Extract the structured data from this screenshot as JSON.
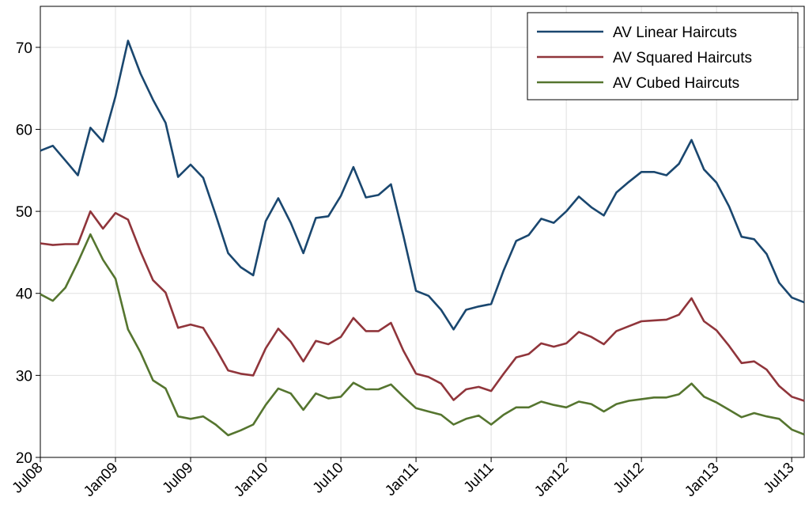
{
  "chart_data": {
    "type": "line",
    "categories": [
      "Jul08",
      null,
      null,
      null,
      null,
      null,
      "Jan09",
      null,
      null,
      null,
      null,
      null,
      "Jul09",
      null,
      null,
      null,
      null,
      null,
      "Jan10",
      null,
      null,
      null,
      null,
      null,
      "Jul10",
      null,
      null,
      null,
      null,
      null,
      "Jan11",
      null,
      null,
      null,
      null,
      null,
      "Jul11",
      null,
      null,
      null,
      null,
      null,
      "Jan12",
      null,
      null,
      null,
      null,
      null,
      "Jul12",
      null,
      null,
      null,
      null,
      null,
      "Jan13",
      null,
      null,
      null,
      null,
      null,
      "Jul13",
      null
    ],
    "series": [
      {
        "name": "AV Linear Haircuts",
        "color": "#1a476f",
        "values": [
          57.4,
          58.0,
          56.2,
          54.4,
          60.2,
          58.5,
          64.0,
          70.8,
          66.8,
          63.6,
          60.8,
          54.2,
          55.7,
          54.1,
          49.6,
          44.9,
          43.2,
          42.2,
          48.8,
          51.6,
          48.6,
          44.9,
          49.2,
          49.4,
          51.9,
          55.4,
          51.7,
          52.0,
          53.3,
          47.0,
          40.3,
          39.7,
          38.0,
          35.6,
          38.0,
          38.4,
          38.7,
          42.8,
          46.4,
          47.1,
          49.1,
          48.6,
          50.0,
          51.8,
          50.5,
          49.5,
          52.3,
          53.6,
          54.8,
          54.8,
          54.4,
          55.8,
          58.7,
          55.1,
          53.5,
          50.6,
          46.9,
          46.6,
          44.8,
          41.3,
          39.5,
          38.9
        ]
      },
      {
        "name": "AV Squared Haircuts",
        "color": "#90353b",
        "values": [
          46.1,
          45.9,
          46.0,
          46.0,
          50.0,
          47.9,
          49.8,
          49.0,
          45.1,
          41.6,
          40.1,
          35.8,
          36.2,
          35.8,
          33.3,
          30.6,
          30.2,
          30.0,
          33.3,
          35.7,
          34.1,
          31.7,
          34.2,
          33.8,
          34.7,
          37.0,
          35.4,
          35.4,
          36.4,
          33.0,
          30.2,
          29.8,
          29.0,
          27.0,
          28.3,
          28.6,
          28.1,
          30.2,
          32.2,
          32.6,
          33.9,
          33.5,
          33.9,
          35.3,
          34.7,
          33.8,
          35.4,
          36.0,
          36.6,
          36.7,
          36.8,
          37.4,
          39.4,
          36.6,
          35.5,
          33.6,
          31.5,
          31.7,
          30.7,
          28.7,
          27.4,
          26.9
        ]
      },
      {
        "name": "AV Cubed Haircuts",
        "color": "#55752f",
        "values": [
          39.9,
          39.1,
          40.7,
          43.8,
          47.2,
          44.1,
          41.8,
          35.6,
          32.8,
          29.4,
          28.4,
          25.0,
          24.7,
          25.0,
          24.0,
          22.7,
          23.3,
          24.0,
          26.4,
          28.4,
          27.8,
          25.8,
          27.8,
          27.2,
          27.4,
          29.1,
          28.3,
          28.3,
          28.9,
          27.4,
          26.0,
          25.6,
          25.2,
          24.0,
          24.7,
          25.1,
          24.0,
          25.2,
          26.1,
          26.1,
          26.8,
          26.4,
          26.1,
          26.8,
          26.5,
          25.6,
          26.5,
          26.9,
          27.1,
          27.3,
          27.3,
          27.7,
          29.0,
          27.4,
          26.7,
          25.8,
          24.9,
          25.4,
          25.0,
          24.7,
          23.4,
          22.8
        ]
      }
    ],
    "ylim": [
      20,
      75
    ],
    "yticks": [
      20,
      30,
      40,
      50,
      60,
      70
    ],
    "grid": true,
    "legend": "top-right"
  }
}
